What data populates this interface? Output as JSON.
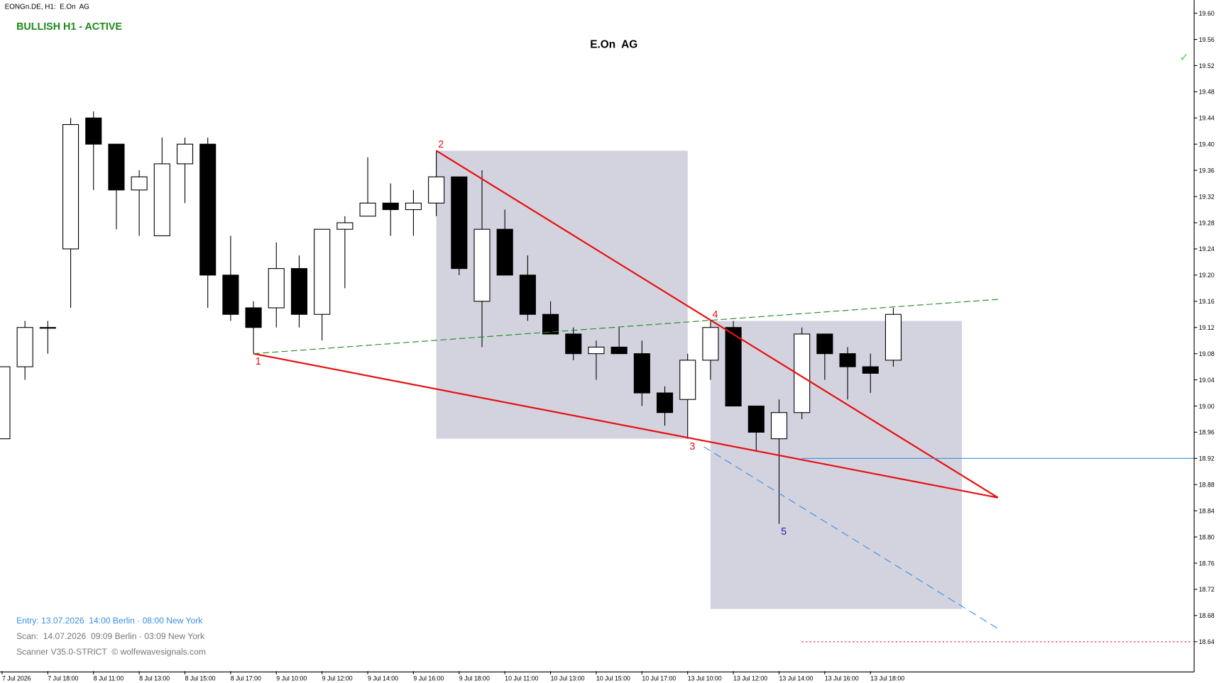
{
  "chart_data": {
    "type": "candlestick",
    "symbol_label": "EONGn.DE, H1:  E.On  AG",
    "status": "BULLISH H1 - ACTIVE",
    "title": "E.On  AG",
    "categories": [
      "7 Jul 2026",
      null,
      "7 Jul 18:00",
      null,
      "8 Jul 11:00",
      null,
      "8 Jul 13:00",
      null,
      "8 Jul 15:00",
      null,
      "8 Jul 17:00",
      null,
      "9 Jul 10:00",
      null,
      "9 Jul 12:00",
      null,
      "9 Jul 14:00",
      null,
      "9 Jul 16:00",
      null,
      "9 Jul 18:00",
      null,
      "10 Jul 11:00",
      null,
      "10 Jul 13:00",
      null,
      "10 Jul 15:00",
      null,
      "10 Jul 17:00",
      null,
      "13 Jul 10:00",
      null,
      "13 Jul 12:00",
      null,
      "13 Jul 14:00",
      null,
      "13 Jul 16:00",
      null,
      "13 Jul 18:00",
      null
    ],
    "open": [
      18.95,
      19.06,
      19.12,
      19.24,
      19.44,
      19.4,
      19.33,
      19.26,
      19.37,
      19.4,
      19.2,
      19.15,
      19.15,
      19.21,
      19.14,
      19.27,
      19.29,
      19.31,
      19.3,
      19.31,
      19.35,
      19.16,
      19.27,
      19.2,
      19.14,
      19.11,
      19.08,
      19.09,
      19.08,
      19.02,
      19.01,
      19.07,
      19.12,
      19.0,
      18.95,
      18.99,
      19.11,
      19.08,
      19.06,
      19.07
    ],
    "high": [
      19.06,
      19.13,
      19.13,
      19.44,
      19.45,
      19.4,
      19.36,
      19.41,
      19.41,
      19.41,
      19.26,
      19.16,
      19.25,
      19.23,
      19.27,
      19.29,
      19.38,
      19.34,
      19.33,
      19.39,
      19.35,
      19.36,
      19.3,
      19.23,
      19.16,
      19.12,
      19.1,
      19.12,
      19.1,
      19.03,
      19.08,
      19.13,
      19.13,
      19.0,
      19.01,
      19.12,
      19.11,
      19.09,
      19.08,
      19.15
    ],
    "low": [
      18.95,
      19.04,
      19.08,
      19.15,
      19.33,
      19.27,
      19.26,
      19.26,
      19.31,
      19.15,
      19.13,
      19.08,
      19.12,
      19.12,
      19.1,
      19.18,
      19.29,
      19.26,
      19.26,
      19.29,
      19.2,
      19.09,
      19.2,
      19.13,
      19.11,
      19.07,
      19.04,
      19.08,
      19.0,
      18.97,
      18.95,
      19.04,
      19.0,
      18.93,
      18.82,
      18.98,
      19.04,
      19.01,
      19.02,
      19.06
    ],
    "close": [
      19.06,
      19.12,
      19.12,
      19.43,
      19.4,
      19.33,
      19.35,
      19.37,
      19.4,
      19.2,
      19.14,
      19.12,
      19.21,
      19.14,
      19.27,
      19.28,
      19.31,
      19.3,
      19.31,
      19.35,
      19.21,
      19.27,
      19.2,
      19.14,
      19.11,
      19.08,
      19.09,
      19.08,
      19.02,
      18.99,
      19.07,
      19.12,
      19.0,
      18.96,
      18.99,
      19.11,
      19.08,
      19.06,
      19.05,
      19.14
    ],
    "ylim": [
      18.595,
      19.62
    ],
    "yticks": [
      18.64,
      18.68,
      18.72,
      18.76,
      {
        "value": 18.8,
        "label": "18.80"
      },
      18.84,
      18.88,
      18.92,
      18.96,
      {
        "value": 19,
        "label": "19.00"
      },
      19.04,
      19.08,
      19.12,
      19.16,
      {
        "value": 19.2,
        "label": "19.20"
      },
      19.24,
      19.28,
      19.32,
      19.36,
      {
        "value": 19.4,
        "label": "19.40"
      },
      19.44,
      19.48,
      19.52,
      19.56,
      {
        "value": 19.6,
        "label": "19.60"
      }
    ],
    "rectangles": [
      {
        "x0": 19,
        "x1": 30,
        "y0": 19.39,
        "y1": 18.95,
        "color": "#d3d3e0"
      },
      {
        "x0": 31,
        "x1": 42,
        "y0": 19.13,
        "y1": 18.69,
        "color": "#d3d3e0"
      }
    ],
    "lines": [
      {
        "x0": 11,
        "y0": 19.08,
        "x1": 43.58,
        "y1": 18.86,
        "color": "#e81010",
        "dash": "none",
        "width": 2
      },
      {
        "x0": 19,
        "y0": 19.39,
        "x1": 43.58,
        "y1": 18.86,
        "color": "#e81010",
        "dash": "none",
        "width": 2
      },
      {
        "x0": 11,
        "y0": 19.08,
        "x1": 43.58,
        "y1": 19.163,
        "color": "#1a8a1a",
        "dash": "8 4",
        "width": 1
      },
      {
        "x0": 30.7,
        "y0": 18.938,
        "x1": 43.58,
        "y1": 18.66,
        "color": "#3a8fe0",
        "dash": "10 6",
        "width": 1
      },
      {
        "x0": 35,
        "y0": 18.92,
        "x1": 52.16,
        "y1": 18.92,
        "color": "#3a8fe0",
        "dash": "none",
        "width": 1
      },
      {
        "x0": 35,
        "y0": 18.64,
        "x1": 52.1,
        "y1": 18.64,
        "color": "#e81010",
        "dash": "2 3",
        "width": 1
      }
    ],
    "points": [
      {
        "label": "1",
        "x": 11,
        "price": 19.08,
        "color": "#e81010"
      },
      {
        "label": "2",
        "x": 19,
        "price": 19.39,
        "color": "#e81010"
      },
      {
        "label": "3",
        "x": 30,
        "price": 18.95,
        "color": "#e81010"
      },
      {
        "label": "4",
        "x": 31,
        "price": 19.13,
        "color": "#e81010"
      },
      {
        "label": "5",
        "x": 34,
        "price": 18.82,
        "color": "#2020c0"
      }
    ],
    "check": "✓",
    "info": [
      "Entry: 13.07.2026  14:00 Berlin · 08:00 New York",
      "Scan:  14.07.2026  09:09 Berlin · 03:09 New York",
      "Scanner V35.0-STRICT  © wolfewavesignals.com"
    ]
  }
}
